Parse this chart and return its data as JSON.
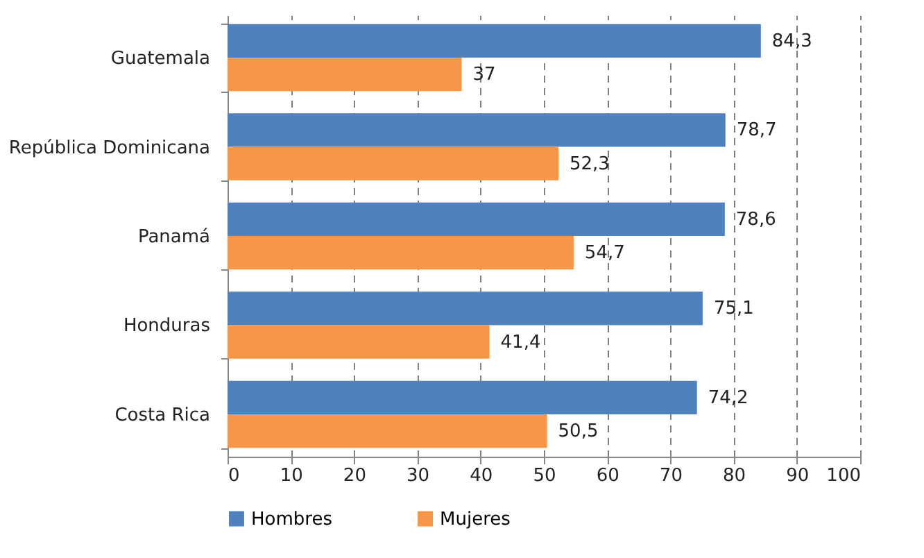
{
  "chart_data": {
    "type": "bar",
    "orientation": "horizontal",
    "categories": [
      "Guatemala",
      "República Dominicana",
      "Panamá",
      "Honduras",
      "Costa Rica"
    ],
    "series": [
      {
        "name": "Hombres",
        "color": "#4f81bd",
        "values": [
          84.3,
          78.7,
          78.6,
          75.1,
          74.2
        ],
        "value_labels": [
          "84,3",
          "78,7",
          "78,6",
          "75,1",
          "74,2"
        ]
      },
      {
        "name": "Mujeres",
        "color": "#f79646",
        "values": [
          37,
          52.3,
          54.7,
          41.4,
          50.5
        ],
        "value_labels": [
          "37",
          "52,3",
          "54,7",
          "41,4",
          "50,5"
        ]
      }
    ],
    "xlim": [
      0,
      100
    ],
    "xticks": [
      0,
      10,
      20,
      30,
      40,
      50,
      60,
      70,
      80,
      90,
      100
    ],
    "grid": "x",
    "legend": "bottom"
  }
}
